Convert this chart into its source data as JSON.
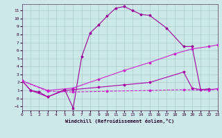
{
  "bg_color": "#cce8e8",
  "grid_color": "#aacccc",
  "c1": "#990099",
  "c2": "#cc22cc",
  "c3": "#aa00aa",
  "xlabel": "Windchill (Refroidissement éolien,°C)",
  "xlim": [
    0,
    23
  ],
  "ylim": [
    -1.5,
    11.8
  ],
  "ytick_vals": [
    -1,
    0,
    1,
    2,
    3,
    4,
    5,
    6,
    7,
    8,
    9,
    10,
    11
  ],
  "xtick_vals": [
    0,
    1,
    2,
    3,
    4,
    5,
    6,
    7,
    8,
    9,
    10,
    11,
    12,
    13,
    14,
    15,
    16,
    17,
    18,
    19,
    20,
    21,
    22,
    23
  ],
  "s1x": [
    0,
    1,
    2,
    3,
    5,
    6,
    7,
    8,
    9,
    10,
    11,
    12,
    13,
    14,
    15,
    17,
    19,
    20,
    21,
    22
  ],
  "s1y": [
    2.2,
    1.0,
    0.8,
    0.2,
    1.1,
    -1.2,
    5.2,
    8.2,
    9.2,
    10.3,
    11.3,
    11.5,
    11.0,
    10.5,
    10.4,
    8.8,
    6.5,
    6.5,
    1.1,
    1.2
  ],
  "s2x": [
    0,
    3,
    6,
    9,
    12,
    15,
    18,
    20,
    22,
    23
  ],
  "s2y": [
    2.2,
    1.0,
    1.3,
    2.4,
    3.5,
    4.5,
    5.6,
    6.2,
    6.5,
    6.7
  ],
  "s3x": [
    0,
    1,
    3,
    5,
    6,
    9,
    12,
    15,
    19,
    20,
    21,
    22,
    23
  ],
  "s3y": [
    2.2,
    1.0,
    0.2,
    1.0,
    1.1,
    1.4,
    1.7,
    2.0,
    3.3,
    1.3,
    1.1,
    1.1,
    1.2
  ],
  "s4x": [
    0,
    3,
    6,
    10,
    15,
    19,
    22,
    23
  ],
  "s4y": [
    2.2,
    0.9,
    0.8,
    0.9,
    1.0,
    1.1,
    1.0,
    1.2
  ]
}
